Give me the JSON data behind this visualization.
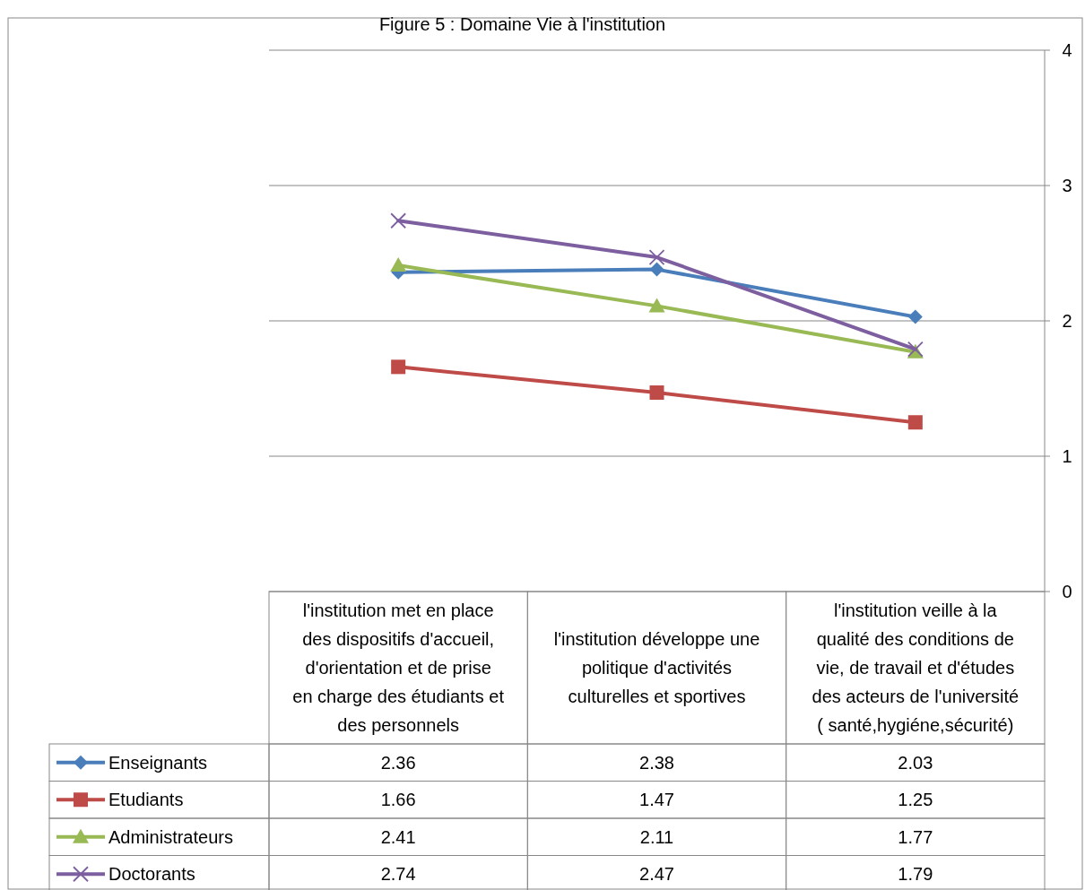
{
  "chart_data": {
    "type": "line",
    "title": "Figure 5 : Domaine Vie à l'institution",
    "categories": [
      "l'institution met en place des dispositifs d'accueil, d'orientation et de prise en charge des étudiants et des personnels",
      "l'institution développe une politique d'activités culturelles et sportives",
      "l'institution veille à la qualité des conditions de vie, de travail et d'études des acteurs de l'université ( santé,hygiéne,sécurité)"
    ],
    "series": [
      {
        "name": "Enseignants",
        "color": "#4a7ebb",
        "marker": "diamond",
        "values": [
          2.36,
          2.38,
          2.03
        ]
      },
      {
        "name": "Etudiants",
        "color": "#be4b48",
        "marker": "square",
        "values": [
          1.66,
          1.47,
          1.25
        ]
      },
      {
        "name": "Administrateurs",
        "color": "#98b954",
        "marker": "triangle",
        "values": [
          2.41,
          2.11,
          1.77
        ]
      },
      {
        "name": "Doctorants",
        "color": "#7d5fa0",
        "marker": "cross",
        "values": [
          2.74,
          2.47,
          1.79
        ]
      }
    ],
    "ylim": [
      0,
      4
    ],
    "yticks": [
      0,
      1,
      2,
      3,
      4
    ],
    "grid": "y",
    "legend": "bottom",
    "data_labels": true,
    "line_style": "solid"
  }
}
